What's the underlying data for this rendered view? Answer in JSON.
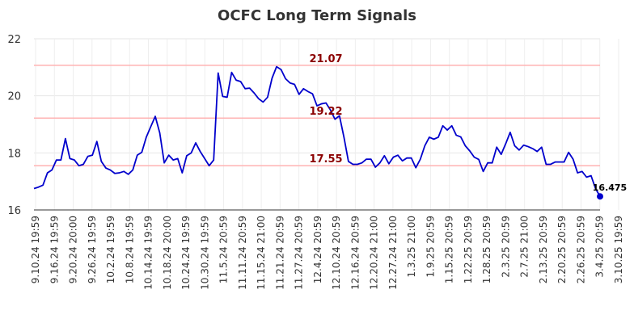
{
  "chart_data": {
    "type": "line",
    "title": "OCFC Long Term Signals",
    "xlabel": "",
    "ylabel": "",
    "ylim": [
      16,
      22
    ],
    "y_ticks": [
      16,
      18,
      20,
      22
    ],
    "grid": true,
    "x_tick_labels": [
      "9.10.24 19:59",
      "9.16.24 19:59",
      "9.20.24 20:00",
      "9.26.24 19:59",
      "10.2.24 19:59",
      "10.8.24 19:59",
      "10.14.24 19:59",
      "10.18.24 20:00",
      "10.24.24 19:59",
      "10.30.24 19:59",
      "11.5.24 20:59",
      "11.11.24 20:59",
      "11.15.24 21:00",
      "11.21.24 20:59",
      "11.27.24 20:59",
      "12.4.24 20:59",
      "12.10.24 20:59",
      "12.16.24 20:59",
      "12.20.24 21:00",
      "12.27.24 21:00",
      "1.3.25 21:00",
      "1.9.25 20:59",
      "1.15.25 20:59",
      "1.22.25 20:59",
      "1.28.25 20:59",
      "2.3.25 20:59",
      "2.7.25 21:00",
      "2.13.25 20:59",
      "2.20.25 20:59",
      "2.26.25 20:59",
      "3.4.25 20:59",
      "3.10.25 19:59"
    ],
    "reference_lines": [
      {
        "value": 21.07,
        "label": "21.07"
      },
      {
        "value": 19.22,
        "label": "19.22"
      },
      {
        "value": 17.55,
        "label": "17.55"
      }
    ],
    "series": [
      {
        "color": "#0000cc",
        "values": [
          16.75,
          16.8,
          16.87,
          17.3,
          17.4,
          17.75,
          17.75,
          18.5,
          17.8,
          17.75,
          17.55,
          17.6,
          17.88,
          17.92,
          18.4,
          17.7,
          17.47,
          17.4,
          17.28,
          17.3,
          17.35,
          17.25,
          17.4,
          17.92,
          18.02,
          18.55,
          18.92,
          19.28,
          18.7,
          17.65,
          17.92,
          17.75,
          17.8,
          17.3,
          17.9,
          18.0,
          18.35,
          18.05,
          17.8,
          17.55,
          17.75,
          20.8,
          19.98,
          19.95,
          20.82,
          20.55,
          20.5,
          20.25,
          20.27,
          20.1,
          19.9,
          19.78,
          19.95,
          20.62,
          21.02,
          20.92,
          20.6,
          20.45,
          20.4,
          20.05,
          20.25,
          20.15,
          20.07,
          19.65,
          19.72,
          19.75,
          19.5,
          19.18,
          19.3,
          18.55,
          17.7,
          17.6,
          17.6,
          17.65,
          17.78,
          17.78,
          17.5,
          17.65,
          17.9,
          17.62,
          17.85,
          17.92,
          17.72,
          17.82,
          17.82,
          17.48,
          17.78,
          18.25,
          18.55,
          18.48,
          18.55,
          18.95,
          18.8,
          18.95,
          18.62,
          18.56,
          18.25,
          18.07,
          17.85,
          17.77,
          17.35,
          17.65,
          17.65,
          18.2,
          17.95,
          18.32,
          18.72,
          18.25,
          18.1,
          18.27,
          18.22,
          18.15,
          18.05,
          18.2,
          17.6,
          17.6,
          17.68,
          17.68,
          17.68,
          18.02,
          17.78,
          17.3,
          17.35,
          17.15,
          17.2,
          16.75,
          16.475
        ]
      }
    ],
    "last_value_label": "16.475"
  }
}
